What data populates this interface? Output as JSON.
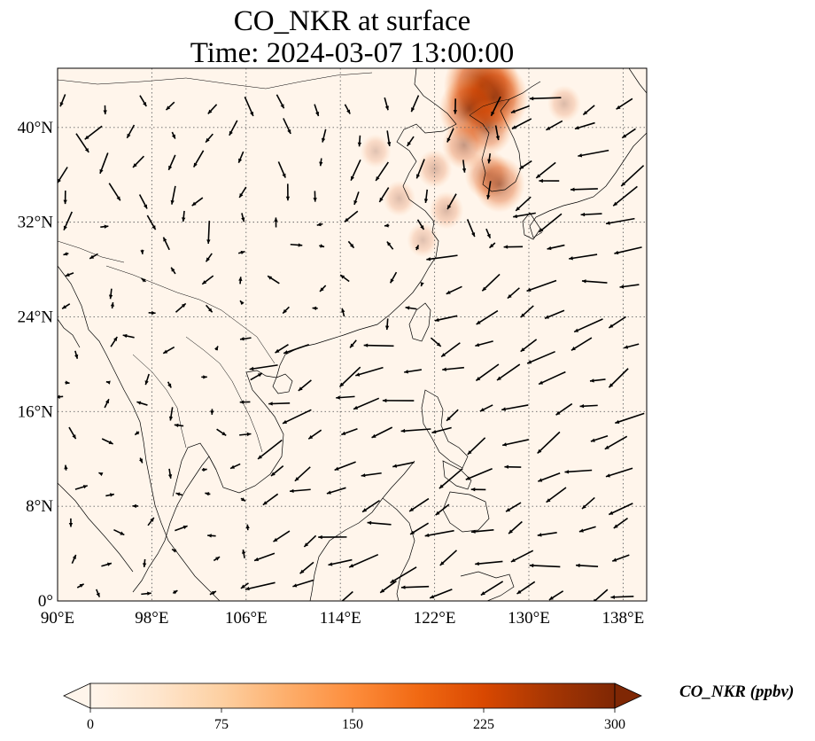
{
  "title": {
    "line1": "CO_NKR at surface",
    "line2": "Time: 2024-03-07 13:00:00"
  },
  "map": {
    "projection": "PlateCarree",
    "lon_range": [
      90,
      140
    ],
    "lat_range": [
      0,
      45
    ],
    "lon_ticks": [
      {
        "value": 90,
        "label": "90°E"
      },
      {
        "value": 98,
        "label": "98°E"
      },
      {
        "value": 106,
        "label": "106°E"
      },
      {
        "value": 114,
        "label": "114°E"
      },
      {
        "value": 122,
        "label": "122°E"
      },
      {
        "value": 130,
        "label": "130°E"
      },
      {
        "value": 138,
        "label": "138°E"
      }
    ],
    "lat_ticks": [
      {
        "value": 0,
        "label": "0°"
      },
      {
        "value": 8,
        "label": "8°N"
      },
      {
        "value": 16,
        "label": "16°N"
      },
      {
        "value": 24,
        "label": "24°N"
      },
      {
        "value": 32,
        "label": "32°N"
      },
      {
        "value": 40,
        "label": "40°N"
      }
    ],
    "gridlines": "dotted",
    "background_color": "#fff5eb",
    "coastline_color": "#000000"
  },
  "field": {
    "variable": "CO_NKR",
    "units": "ppbv",
    "high_region": "northeast China / Korea / Yellow Sea",
    "colormap": "Oranges"
  },
  "colorbar": {
    "label": "CO_NKR (ppbv)",
    "ticks": [
      {
        "value": 0,
        "label": "0"
      },
      {
        "value": 75,
        "label": "75"
      },
      {
        "value": 150,
        "label": "150"
      },
      {
        "value": 225,
        "label": "225"
      },
      {
        "value": 300,
        "label": "300"
      }
    ],
    "range": [
      0,
      300
    ],
    "extend": "both",
    "colors": [
      "#fff5eb",
      "#fee6ce",
      "#fdd0a2",
      "#fdae6b",
      "#fd8d3c",
      "#f16913",
      "#d94801",
      "#a63603",
      "#7f2704"
    ]
  },
  "chart_data": {
    "type": "heatmap",
    "title": "CO_NKR at surface",
    "subtitle": "Time: 2024-03-07 13:00:00",
    "xlim": [
      90,
      140
    ],
    "ylim": [
      0,
      45
    ],
    "overlay": "wind vectors (quiver)",
    "hotspots": [
      {
        "lon": 126.0,
        "lat": 43.5,
        "value": 290
      },
      {
        "lon": 127.0,
        "lat": 42.5,
        "value": 250
      },
      {
        "lon": 125.0,
        "lat": 41.5,
        "value": 210
      },
      {
        "lon": 126.5,
        "lat": 40.0,
        "value": 150
      },
      {
        "lon": 124.5,
        "lat": 38.5,
        "value": 110
      },
      {
        "lon": 126.5,
        "lat": 36.0,
        "value": 120
      },
      {
        "lon": 127.5,
        "lat": 35.2,
        "value": 150
      },
      {
        "lon": 122.0,
        "lat": 36.5,
        "value": 60
      },
      {
        "lon": 123.0,
        "lat": 33.0,
        "value": 55
      },
      {
        "lon": 119.0,
        "lat": 34.0,
        "value": 45
      },
      {
        "lon": 121.0,
        "lat": 30.5,
        "value": 40
      },
      {
        "lon": 133.0,
        "lat": 42.0,
        "value": 50
      },
      {
        "lon": 117.0,
        "lat": 38.0,
        "value": 35
      }
    ],
    "wind_vectors_direction_dominant": "northeasterly over the South China Sea and western Pacific"
  }
}
